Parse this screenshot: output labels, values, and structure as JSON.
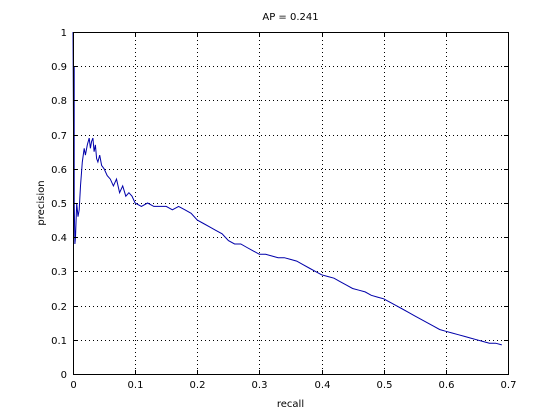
{
  "chart_data": {
    "type": "line",
    "title": "AP = 0.241",
    "xlabel": "recall",
    "ylabel": "precision",
    "xlim": [
      0,
      0.7
    ],
    "ylim": [
      0,
      1
    ],
    "grid": true,
    "xticks": [
      "0",
      "0.1",
      "0.2",
      "0.3",
      "0.4",
      "0.5",
      "0.6",
      "0.7"
    ],
    "yticks": [
      "0",
      "0.1",
      "0.2",
      "0.3",
      "0.4",
      "0.5",
      "0.6",
      "0.7",
      "0.8",
      "0.9",
      "1"
    ],
    "line_color": "#0000aa",
    "series": [
      {
        "x": [
          0.0,
          0.001,
          0.002,
          0.002,
          0.003,
          0.004,
          0.005,
          0.006,
          0.008,
          0.01,
          0.012,
          0.015,
          0.018,
          0.02,
          0.023,
          0.026,
          0.028,
          0.03,
          0.032,
          0.034,
          0.036,
          0.038,
          0.04,
          0.043,
          0.046,
          0.05,
          0.055,
          0.06,
          0.065,
          0.07,
          0.075,
          0.08,
          0.085,
          0.09,
          0.095,
          0.1,
          0.11,
          0.12,
          0.13,
          0.14,
          0.15,
          0.16,
          0.17,
          0.18,
          0.19,
          0.2,
          0.21,
          0.22,
          0.23,
          0.24,
          0.25,
          0.26,
          0.27,
          0.28,
          0.29,
          0.3,
          0.31,
          0.32,
          0.33,
          0.34,
          0.35,
          0.36,
          0.37,
          0.38,
          0.39,
          0.4,
          0.41,
          0.42,
          0.43,
          0.44,
          0.45,
          0.46,
          0.47,
          0.48,
          0.49,
          0.5,
          0.51,
          0.52,
          0.53,
          0.54,
          0.55,
          0.56,
          0.57,
          0.58,
          0.59,
          0.6,
          0.61,
          0.62,
          0.63,
          0.64,
          0.65,
          0.66,
          0.67,
          0.68,
          0.69
        ],
        "y": [
          1.0,
          0.67,
          0.9,
          0.5,
          0.38,
          0.4,
          0.45,
          0.5,
          0.46,
          0.48,
          0.55,
          0.62,
          0.66,
          0.64,
          0.67,
          0.69,
          0.66,
          0.68,
          0.69,
          0.65,
          0.67,
          0.63,
          0.62,
          0.64,
          0.61,
          0.6,
          0.58,
          0.57,
          0.55,
          0.57,
          0.53,
          0.55,
          0.52,
          0.53,
          0.52,
          0.5,
          0.49,
          0.5,
          0.49,
          0.49,
          0.49,
          0.48,
          0.49,
          0.48,
          0.47,
          0.45,
          0.44,
          0.43,
          0.42,
          0.41,
          0.39,
          0.38,
          0.38,
          0.37,
          0.36,
          0.35,
          0.35,
          0.345,
          0.34,
          0.34,
          0.335,
          0.33,
          0.32,
          0.31,
          0.3,
          0.29,
          0.285,
          0.28,
          0.27,
          0.26,
          0.25,
          0.245,
          0.24,
          0.23,
          0.225,
          0.22,
          0.21,
          0.2,
          0.19,
          0.18,
          0.17,
          0.16,
          0.15,
          0.14,
          0.13,
          0.125,
          0.12,
          0.115,
          0.11,
          0.105,
          0.1,
          0.095,
          0.09,
          0.09,
          0.085
        ]
      }
    ]
  }
}
